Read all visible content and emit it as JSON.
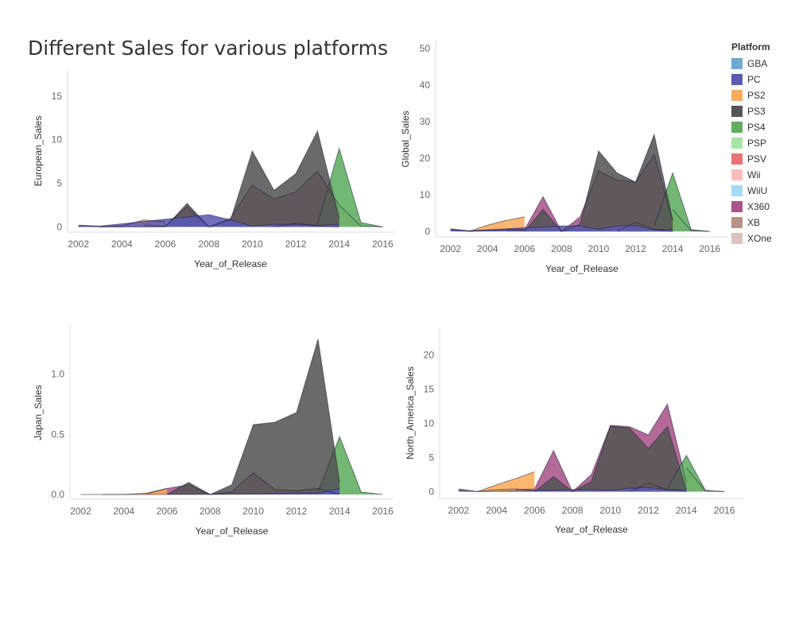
{
  "page": {
    "title": "Different Sales for various platforms"
  },
  "legend": {
    "title": "Platform",
    "items": [
      {
        "label": "GBA",
        "color": "#6fa7d3"
      },
      {
        "label": "PC",
        "color": "#5b5bb5"
      },
      {
        "label": "PS2",
        "color": "#fcac5c"
      },
      {
        "label": "PS3",
        "color": "#555555"
      },
      {
        "label": "PS4",
        "color": "#5fae5f"
      },
      {
        "label": "PSP",
        "color": "#a6e4a6"
      },
      {
        "label": "PSV",
        "color": "#e87474"
      },
      {
        "label": "Wii",
        "color": "#fbbcbc"
      },
      {
        "label": "WiiU",
        "color": "#a3dcf7"
      },
      {
        "label": "X360",
        "color": "#a8558a"
      },
      {
        "label": "XB",
        "color": "#b99086"
      },
      {
        "label": "XOne",
        "color": "#dcc2bd"
      }
    ]
  },
  "chart_data": [
    {
      "type": "area",
      "xlabel": "Year_of_Release",
      "ylabel": "European_Sales",
      "xlim": [
        2001.5,
        2016.5
      ],
      "ylim": [
        -0.6,
        18
      ],
      "xticks": [
        2002,
        2004,
        2006,
        2008,
        2010,
        2012,
        2014,
        2016
      ],
      "yticks": [
        0,
        5,
        10,
        15
      ],
      "series": [
        {
          "name": "XOne",
          "x": [
            2014,
            2015,
            2016
          ],
          "values": [
            2.5,
            0.1,
            0
          ]
        },
        {
          "name": "XB",
          "x": [
            2002,
            2003,
            2004,
            2005,
            2006
          ],
          "values": [
            0.1,
            0,
            0,
            0,
            0
          ]
        },
        {
          "name": "X360",
          "x": [
            2005,
            2006,
            2007,
            2008,
            2009,
            2010,
            2011,
            2012,
            2013,
            2014
          ],
          "values": [
            0.2,
            0.1,
            2.3,
            0,
            1,
            4.8,
            3.2,
            4,
            6.4,
            2.5
          ]
        },
        {
          "name": "PSV",
          "x": [
            2011,
            2012,
            2013,
            2014
          ],
          "values": [
            0,
            0.4,
            0.1,
            0
          ]
        },
        {
          "name": "PS4",
          "x": [
            2013,
            2014,
            2015,
            2016
          ],
          "values": [
            0.3,
            9,
            0.5,
            0
          ]
        },
        {
          "name": "PS3",
          "x": [
            2006,
            2007,
            2008,
            2009,
            2010,
            2011,
            2012,
            2013,
            2014
          ],
          "values": [
            0,
            2.7,
            0,
            0.8,
            8.7,
            4.2,
            6.1,
            11,
            1
          ]
        },
        {
          "name": "PS2",
          "x": [
            2003,
            2004,
            2005,
            2006
          ],
          "values": [
            0,
            0.1,
            0.8,
            0.6
          ]
        },
        {
          "name": "PC",
          "x": [
            2002,
            2003,
            2008,
            2009,
            2010,
            2011,
            2012,
            2013,
            2014
          ],
          "values": [
            0.2,
            0.1,
            1.4,
            0.8,
            0.1,
            0.3,
            0.3,
            0.2,
            0.3
          ]
        }
      ]
    },
    {
      "type": "area",
      "xlabel": "Year_of_Release",
      "ylabel": "Global_Sales",
      "xlim": [
        2001.2,
        2017
      ],
      "ylim": [
        -1.5,
        52
      ],
      "xticks": [
        2002,
        2004,
        2006,
        2008,
        2010,
        2012,
        2014,
        2016
      ],
      "yticks": [
        0,
        10,
        20,
        30,
        40,
        50
      ],
      "series": [
        {
          "name": "XOne",
          "x": [
            2014,
            2015,
            2016
          ],
          "values": [
            6,
            0.2,
            0
          ]
        },
        {
          "name": "XB",
          "x": [
            2002,
            2003,
            2004,
            2005,
            2006
          ],
          "values": [
            0.5,
            0,
            0.3,
            0.4,
            0.3
          ]
        },
        {
          "name": "X360",
          "x": [
            2005,
            2006,
            2007,
            2008,
            2009,
            2010,
            2011,
            2012,
            2013,
            2014
          ],
          "values": [
            0.5,
            0.5,
            9.5,
            0,
            4,
            16.5,
            14,
            13.5,
            21,
            3
          ]
        },
        {
          "name": "PSV",
          "x": [
            2011,
            2012,
            2013,
            2014
          ],
          "values": [
            0,
            2.5,
            0.5,
            0
          ]
        },
        {
          "name": "PS4",
          "x": [
            2013,
            2014,
            2015,
            2016
          ],
          "values": [
            1.5,
            16,
            0.5,
            0
          ]
        },
        {
          "name": "PS3",
          "x": [
            2006,
            2007,
            2008,
            2009,
            2010,
            2011,
            2012,
            2013,
            2014
          ],
          "values": [
            0,
            6,
            0,
            2,
            22,
            16,
            13.5,
            26.5,
            3
          ]
        },
        {
          "name": "PS2",
          "x": [
            2003,
            2004,
            2005,
            2006
          ],
          "values": [
            0,
            1.7,
            3,
            4
          ]
        },
        {
          "name": "PC",
          "x": [
            2002,
            2003,
            2008,
            2009,
            2010,
            2011,
            2012,
            2013,
            2014
          ],
          "values": [
            0.7,
            0.2,
            1.5,
            1.5,
            0.6,
            1.5,
            1.6,
            0.5,
            0.5
          ]
        }
      ]
    },
    {
      "type": "area",
      "xlabel": "Year_of_Release",
      "ylabel": "Japan_Sales",
      "xlim": [
        2001.5,
        2016.5
      ],
      "ylim": [
        -0.04,
        1.4
      ],
      "xticks": [
        2002,
        2004,
        2006,
        2008,
        2010,
        2012,
        2014,
        2016
      ],
      "yticks": [
        0.0,
        0.5,
        1.0
      ],
      "ytick_labels": [
        "0.0",
        "0.5",
        "1.0"
      ],
      "series": [
        {
          "name": "X360",
          "x": [
            2005,
            2006,
            2007,
            2008,
            2009,
            2010,
            2011,
            2012,
            2013,
            2014
          ],
          "values": [
            0,
            0.05,
            0.08,
            0,
            0.02,
            0.18,
            0.04,
            0.03,
            0.05,
            0
          ]
        },
        {
          "name": "PS4",
          "x": [
            2013,
            2014,
            2015,
            2016
          ],
          "values": [
            0.02,
            0.48,
            0.02,
            0
          ]
        },
        {
          "name": "PS3",
          "x": [
            2006,
            2007,
            2008,
            2009,
            2010,
            2011,
            2012,
            2013,
            2014
          ],
          "values": [
            0,
            0.1,
            0,
            0.08,
            0.58,
            0.6,
            0.68,
            1.29,
            0.1
          ]
        },
        {
          "name": "PS2",
          "x": [
            2003,
            2004,
            2005,
            2006
          ],
          "values": [
            0,
            0,
            0.01,
            0.05
          ]
        },
        {
          "name": "PC",
          "x": [
            2002,
            2003,
            2008,
            2013,
            2014
          ],
          "values": [
            0,
            0,
            0,
            0.01,
            0.05
          ]
        }
      ]
    },
    {
      "type": "area",
      "xlabel": "Year_of_Release",
      "ylabel": "North_America_Sales",
      "xlim": [
        2001,
        2017
      ],
      "ylim": [
        -1,
        24
      ],
      "xticks": [
        2002,
        2004,
        2006,
        2008,
        2010,
        2012,
        2014,
        2016
      ],
      "yticks": [
        0,
        5,
        10,
        15,
        20
      ],
      "series": [
        {
          "name": "XOne",
          "x": [
            2014,
            2015,
            2016
          ],
          "values": [
            3.5,
            0.1,
            0
          ]
        },
        {
          "name": "XB",
          "x": [
            2002,
            2003,
            2004,
            2005,
            2006
          ],
          "values": [
            0.4,
            0,
            0.3,
            0.4,
            0.2
          ]
        },
        {
          "name": "X360",
          "x": [
            2005,
            2006,
            2007,
            2008,
            2009,
            2010,
            2011,
            2012,
            2013,
            2014
          ],
          "values": [
            0.3,
            0.4,
            6,
            0,
            2.5,
            9.7,
            9.5,
            8.3,
            12.8,
            1.4
          ]
        },
        {
          "name": "PSV",
          "x": [
            2011,
            2012,
            2013,
            2014
          ],
          "values": [
            0,
            1.2,
            0.3,
            0
          ]
        },
        {
          "name": "PS4",
          "x": [
            2013,
            2014,
            2015,
            2016
          ],
          "values": [
            0.5,
            5.3,
            0.2,
            0
          ]
        },
        {
          "name": "PS3",
          "x": [
            2006,
            2007,
            2008,
            2009,
            2010,
            2011,
            2012,
            2013,
            2014
          ],
          "values": [
            0,
            2.2,
            0,
            1.5,
            9.6,
            9.3,
            6.3,
            9.5,
            0.3
          ]
        },
        {
          "name": "PS2",
          "x": [
            2003,
            2004,
            2005,
            2006
          ],
          "values": [
            0,
            1,
            1.9,
            2.9
          ]
        },
        {
          "name": "PC",
          "x": [
            2002,
            2003,
            2008,
            2009,
            2010,
            2011,
            2012,
            2013,
            2014
          ],
          "values": [
            0.2,
            0,
            0.3,
            0.3,
            0.2,
            0.5,
            0.6,
            0.3,
            0.3
          ]
        }
      ]
    }
  ]
}
